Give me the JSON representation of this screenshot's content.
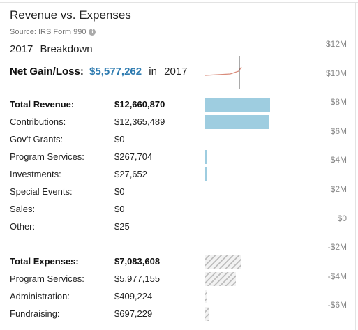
{
  "header": {
    "title": "Revenue vs. Expenses",
    "source": "Source: IRS Form 990",
    "breakdown_year": "2017",
    "breakdown_label": "Breakdown"
  },
  "net_gain": {
    "label": "Net Gain/Loss:",
    "value": "$5,577,262",
    "in_text": "in",
    "year": "2017"
  },
  "revenue_rows": [
    {
      "label": "Total Revenue:",
      "amount": "$12,660,870",
      "value": 12660870,
      "bold": true
    },
    {
      "label": "Contributions:",
      "amount": "$12,365,489",
      "value": 12365489
    },
    {
      "label": "Gov't Grants:",
      "amount": "$0",
      "value": 0
    },
    {
      "label": "Program Services:",
      "amount": "$267,704",
      "value": 267704
    },
    {
      "label": "Investments:",
      "amount": "$27,652",
      "value": 27652
    },
    {
      "label": "Special Events:",
      "amount": "$0",
      "value": 0
    },
    {
      "label": "Sales:",
      "amount": "$0",
      "value": 0
    },
    {
      "label": "Other:",
      "amount": "$25",
      "value": 25
    }
  ],
  "expense_rows": [
    {
      "label": "Total Expenses:",
      "amount": "$7,083,608",
      "value": 7083608,
      "bold": true
    },
    {
      "label": "Program Services:",
      "amount": "$5,977,155",
      "value": 5977155
    },
    {
      "label": "Administration:",
      "amount": "$409,224",
      "value": 409224
    },
    {
      "label": "Fundraising:",
      "amount": "$697,229",
      "value": 697229
    }
  ],
  "axis_ticks": [
    "$12M",
    "$10M",
    "$8M",
    "$6M",
    "$4M",
    "$2M",
    "$0",
    "-$2M",
    "-$4M",
    "-$6M"
  ],
  "colors": {
    "revenue": "#9ecde0",
    "net_value": "#2e7bb0",
    "sparkline": "#d98b7a",
    "marker": "#555555"
  }
}
